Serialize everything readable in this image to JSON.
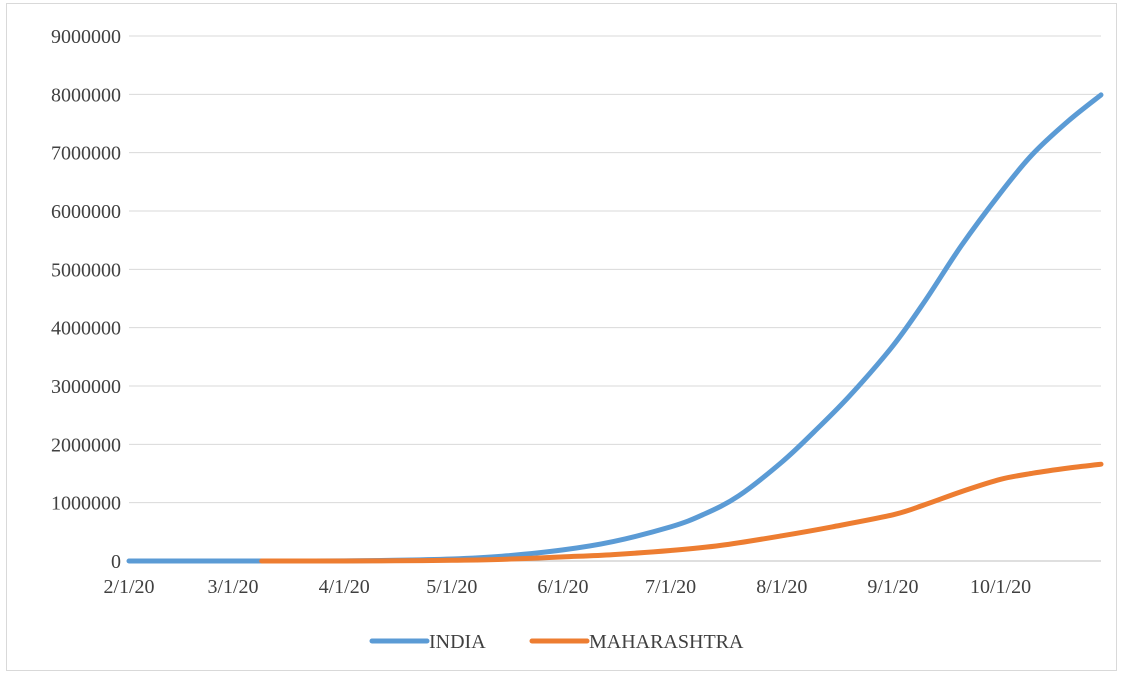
{
  "chart_data": {
    "type": "line",
    "title": "",
    "xlabel": "",
    "ylabel": "",
    "ylim": [
      0,
      9000000
    ],
    "y_ticks": [
      "0",
      "1000000",
      "2000000",
      "3000000",
      "4000000",
      "5000000",
      "6000000",
      "7000000",
      "8000000",
      "9000000"
    ],
    "x_ticks": [
      "2/1/20",
      "3/1/20",
      "4/1/20",
      "5/1/20",
      "6/1/20",
      "7/1/20",
      "8/1/20",
      "9/1/20",
      "10/1/20"
    ],
    "xlim": [
      "2/1/20",
      "10/29/20"
    ],
    "grid": "horizontal",
    "legend_position": "bottom",
    "series": [
      {
        "name": "INDIA",
        "color": "#5b9bd5",
        "points": [
          [
            "2/1/20",
            1
          ],
          [
            "3/1/20",
            3
          ],
          [
            "3/15/20",
            110
          ],
          [
            "4/1/20",
            1800
          ],
          [
            "4/15/20",
            12000
          ],
          [
            "5/1/20",
            35000
          ],
          [
            "5/15/20",
            82000
          ],
          [
            "6/1/20",
            190000
          ],
          [
            "6/15/20",
            333000
          ],
          [
            "7/1/20",
            585000
          ],
          [
            "7/10/20",
            793000
          ],
          [
            "7/20/20",
            1118000
          ],
          [
            "8/1/20",
            1695000
          ],
          [
            "8/10/20",
            2215000
          ],
          [
            "8/20/20",
            2836000
          ],
          [
            "9/1/20",
            3691000
          ],
          [
            "9/10/20",
            4465000
          ],
          [
            "9/20/20",
            5400000
          ],
          [
            "10/1/20",
            6312000
          ],
          [
            "10/10/20",
            6979000
          ],
          [
            "10/20/20",
            7550000
          ],
          [
            "10/29/20",
            7990000
          ]
        ]
      },
      {
        "name": "MAHARASHTRA",
        "color": "#ed7d31",
        "points": [
          [
            "3/9/20",
            2
          ],
          [
            "3/15/20",
            33
          ],
          [
            "4/1/20",
            335
          ],
          [
            "4/15/20",
            2900
          ],
          [
            "5/1/20",
            11500
          ],
          [
            "5/15/20",
            27500
          ],
          [
            "6/1/20",
            70000
          ],
          [
            "6/15/20",
            110000
          ],
          [
            "7/1/20",
            180000
          ],
          [
            "7/15/20",
            267000
          ],
          [
            "8/1/20",
            432000
          ],
          [
            "8/15/20",
            584000
          ],
          [
            "9/1/20",
            792000
          ],
          [
            "9/10/20",
            968000
          ],
          [
            "9/20/20",
            1188000
          ],
          [
            "10/1/20",
            1400000
          ],
          [
            "10/10/20",
            1505000
          ],
          [
            "10/20/20",
            1595000
          ],
          [
            "10/29/20",
            1660000
          ]
        ]
      }
    ]
  }
}
